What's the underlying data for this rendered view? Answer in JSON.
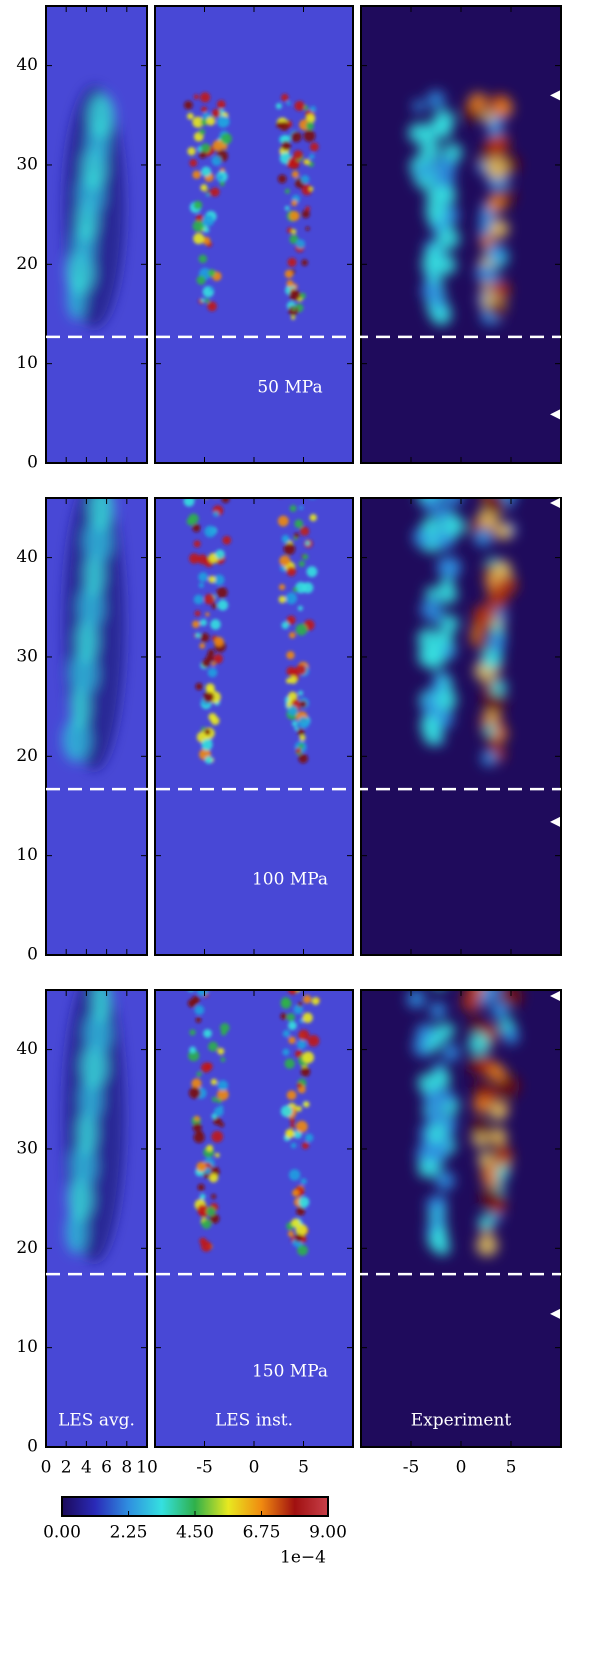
{
  "chart_data": {
    "type": "heatmap",
    "ylim": [
      0,
      46
    ],
    "yticks": [
      0,
      10,
      20,
      30,
      40
    ],
    "panels": [
      {
        "name": "LES avg.",
        "xlim": [
          0,
          10
        ],
        "xticks": [
          0,
          2,
          4,
          6,
          8,
          10
        ],
        "background": "#4848d6"
      },
      {
        "name": "LES inst.",
        "xlim": [
          -10,
          10
        ],
        "xticks": [
          -5,
          0,
          5
        ],
        "background": "#4848d6"
      },
      {
        "name": "Experiment",
        "xlim": [
          -10,
          10
        ],
        "xticks": [
          -5,
          0,
          5
        ],
        "background": "#1f0b5c"
      }
    ],
    "rows": [
      {
        "label": "50 MPa",
        "lift_off": 12.7,
        "markers": [
          37.0,
          4.9
        ]
      },
      {
        "label": "100 MPa",
        "lift_off": 16.7,
        "markers": [
          45.5,
          13.4
        ]
      },
      {
        "label": "150 MPa",
        "lift_off": 17.4,
        "markers": [
          45.4,
          13.4
        ]
      }
    ],
    "colorbar": {
      "vlim": [
        0,
        9
      ],
      "ticks": [
        {
          "value": 0,
          "label": "0.00"
        },
        {
          "value": 2.25,
          "label": "2.25"
        },
        {
          "value": 4.5,
          "label": "4.50"
        },
        {
          "value": 6.75,
          "label": "6.75"
        },
        {
          "value": 9,
          "label": "9.00"
        }
      ],
      "scale_label": "1e−4",
      "colors": [
        "#1b0a5a",
        "#2a2ab8",
        "#2f8fe0",
        "#35e0e0",
        "#2fb04a",
        "#e8e820",
        "#f08a10",
        "#a01010",
        "#c8404a"
      ]
    }
  }
}
